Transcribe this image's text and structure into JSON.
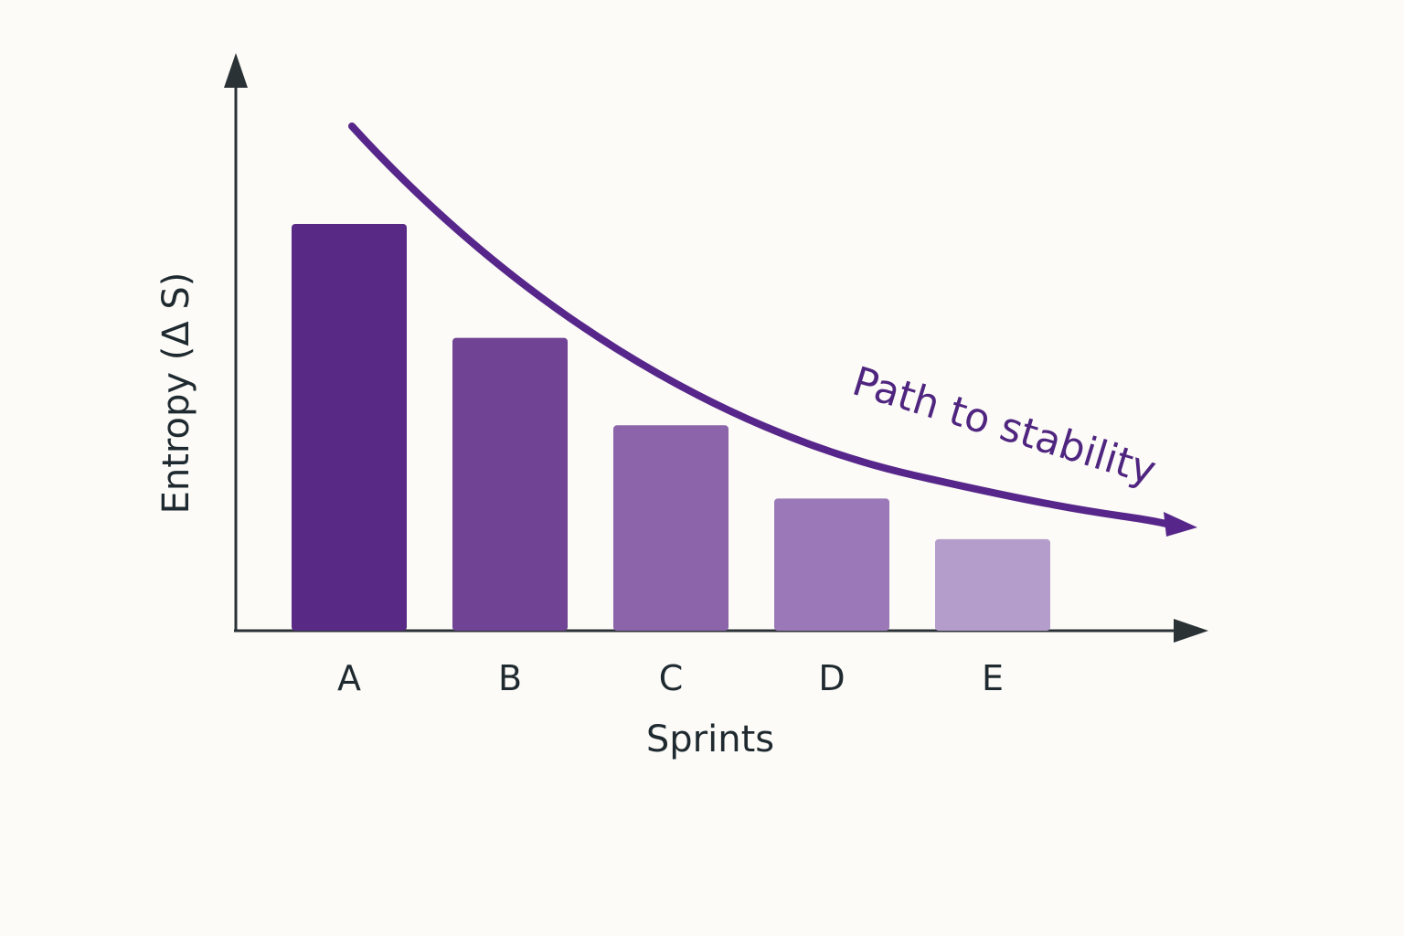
{
  "chart_data": {
    "type": "bar",
    "categories": [
      "A",
      "B",
      "C",
      "D",
      "E"
    ],
    "values": [
      100,
      72,
      50.5,
      32.5,
      22.5
    ],
    "xlabel": "Sprints",
    "ylabel": "Entropy (Δ S)",
    "ylim": [
      0,
      100
    ],
    "ticks": "none",
    "grid": false,
    "legend": "none",
    "annotation": {
      "text": "Path to stability",
      "style": "curved arrow decreasing from A to E"
    },
    "colors": [
      "#582a85",
      "#704395",
      "#8b64aa",
      "#9b79b8",
      "#b49ccb"
    ],
    "arrow_color": "#57268a",
    "axis_color": "#2a3236"
  }
}
